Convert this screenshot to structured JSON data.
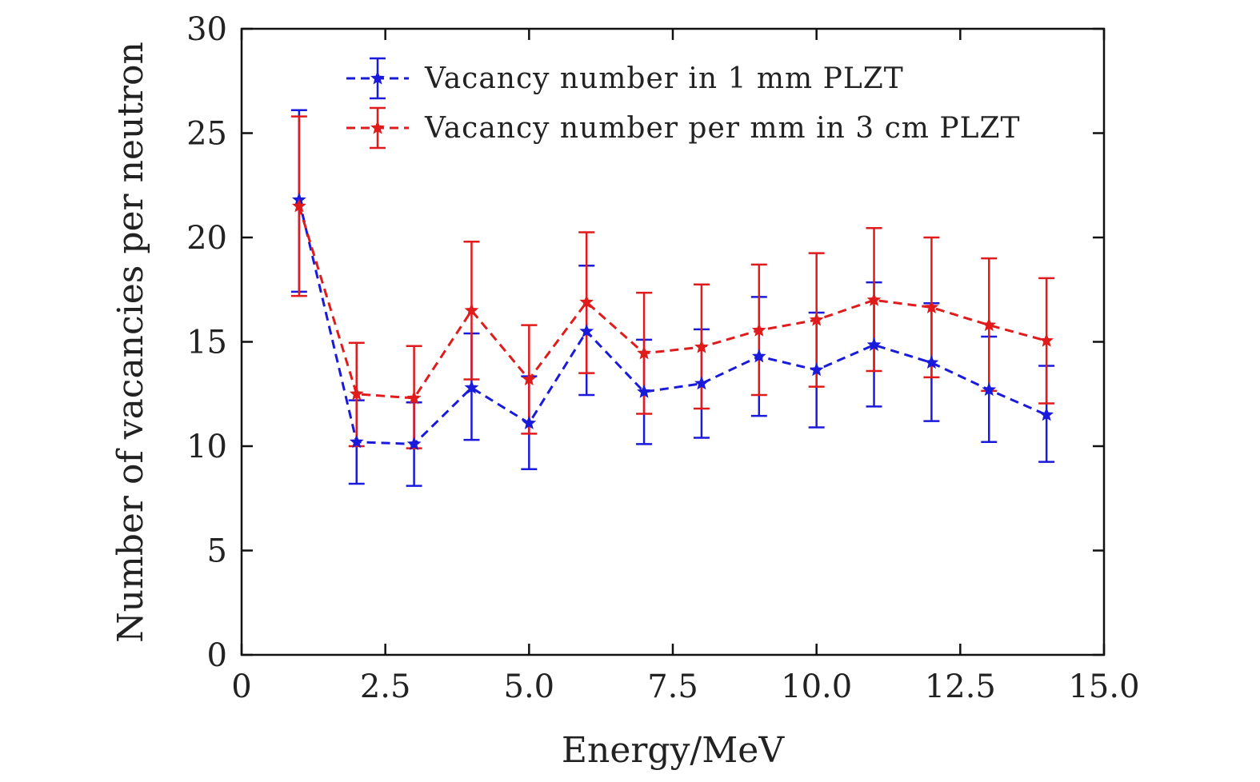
{
  "chart_data": {
    "type": "line",
    "title": "",
    "xlabel": "Energy/MeV",
    "ylabel": "Number of vacancies per neutron",
    "xlim": [
      0,
      15
    ],
    "ylim": [
      0,
      30
    ],
    "x_ticks": [
      0,
      2.5,
      5,
      7.5,
      10,
      12.5,
      15
    ],
    "x_tick_labels": [
      "0",
      "2.5",
      "5.0",
      "7.5",
      "10.0",
      "12.5",
      "15.0"
    ],
    "y_ticks": [
      0,
      5,
      10,
      15,
      20,
      25,
      30
    ],
    "y_tick_labels": [
      "0",
      "5",
      "10",
      "15",
      "20",
      "25",
      "30"
    ],
    "grid": false,
    "legend_position": "top-right",
    "x": [
      1,
      2,
      3,
      4,
      5,
      6,
      7,
      8,
      9,
      10,
      11,
      12,
      13,
      14
    ],
    "series": [
      {
        "name": "Vacancy number in 1 mm PLZT",
        "color": "#1a1adb",
        "values": [
          21.8,
          10.2,
          10.1,
          12.8,
          11.1,
          15.5,
          12.6,
          13.0,
          14.3,
          13.65,
          14.85,
          14.0,
          12.7,
          11.5
        ],
        "err_low": [
          17.4,
          8.2,
          8.1,
          10.3,
          8.9,
          12.45,
          10.1,
          10.4,
          11.45,
          10.9,
          11.9,
          11.2,
          10.2,
          9.25
        ],
        "err_high": [
          26.1,
          12.2,
          12.1,
          15.4,
          13.35,
          18.65,
          15.1,
          15.6,
          17.15,
          16.4,
          17.85,
          16.85,
          15.25,
          13.85
        ]
      },
      {
        "name": "Vacancy number per mm in 3 cm PLZT",
        "color": "#e01b1b",
        "values": [
          21.5,
          12.5,
          12.3,
          16.5,
          13.2,
          16.9,
          14.45,
          14.75,
          15.55,
          16.05,
          17.0,
          16.65,
          15.8,
          15.05
        ],
        "err_low": [
          17.2,
          10.0,
          9.9,
          13.2,
          10.6,
          13.5,
          11.55,
          11.8,
          12.45,
          12.85,
          13.6,
          13.3,
          12.65,
          12.05
        ],
        "err_high": [
          25.8,
          14.95,
          14.8,
          19.8,
          15.8,
          20.25,
          17.35,
          17.75,
          18.7,
          19.25,
          20.45,
          20.0,
          19.0,
          18.05
        ]
      }
    ]
  }
}
